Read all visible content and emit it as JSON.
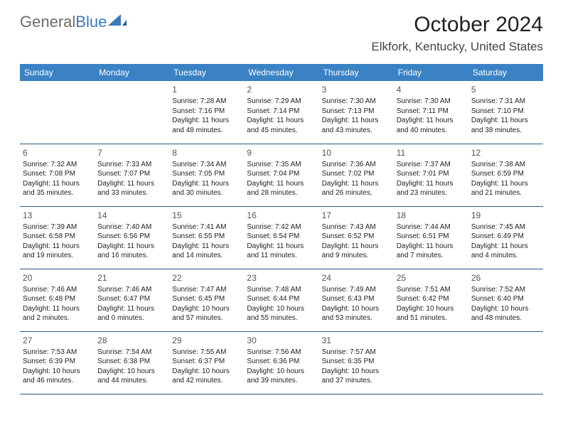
{
  "logo": {
    "text1": "General",
    "text2": "Blue"
  },
  "title": "October 2024",
  "location": "Elkfork, Kentucky, United States",
  "header_bg": "#3a82c4",
  "header_fg": "#ffffff",
  "rule_color": "#2a5a8a",
  "daynames": [
    "Sunday",
    "Monday",
    "Tuesday",
    "Wednesday",
    "Thursday",
    "Friday",
    "Saturday"
  ],
  "weeks": [
    [
      null,
      null,
      {
        "n": "1",
        "sr": "Sunrise: 7:28 AM",
        "ss": "Sunset: 7:16 PM",
        "d1": "Daylight: 11 hours",
        "d2": "and 48 minutes."
      },
      {
        "n": "2",
        "sr": "Sunrise: 7:29 AM",
        "ss": "Sunset: 7:14 PM",
        "d1": "Daylight: 11 hours",
        "d2": "and 45 minutes."
      },
      {
        "n": "3",
        "sr": "Sunrise: 7:30 AM",
        "ss": "Sunset: 7:13 PM",
        "d1": "Daylight: 11 hours",
        "d2": "and 43 minutes."
      },
      {
        "n": "4",
        "sr": "Sunrise: 7:30 AM",
        "ss": "Sunset: 7:11 PM",
        "d1": "Daylight: 11 hours",
        "d2": "and 40 minutes."
      },
      {
        "n": "5",
        "sr": "Sunrise: 7:31 AM",
        "ss": "Sunset: 7:10 PM",
        "d1": "Daylight: 11 hours",
        "d2": "and 38 minutes."
      }
    ],
    [
      {
        "n": "6",
        "sr": "Sunrise: 7:32 AM",
        "ss": "Sunset: 7:08 PM",
        "d1": "Daylight: 11 hours",
        "d2": "and 35 minutes."
      },
      {
        "n": "7",
        "sr": "Sunrise: 7:33 AM",
        "ss": "Sunset: 7:07 PM",
        "d1": "Daylight: 11 hours",
        "d2": "and 33 minutes."
      },
      {
        "n": "8",
        "sr": "Sunrise: 7:34 AM",
        "ss": "Sunset: 7:05 PM",
        "d1": "Daylight: 11 hours",
        "d2": "and 30 minutes."
      },
      {
        "n": "9",
        "sr": "Sunrise: 7:35 AM",
        "ss": "Sunset: 7:04 PM",
        "d1": "Daylight: 11 hours",
        "d2": "and 28 minutes."
      },
      {
        "n": "10",
        "sr": "Sunrise: 7:36 AM",
        "ss": "Sunset: 7:02 PM",
        "d1": "Daylight: 11 hours",
        "d2": "and 26 minutes."
      },
      {
        "n": "11",
        "sr": "Sunrise: 7:37 AM",
        "ss": "Sunset: 7:01 PM",
        "d1": "Daylight: 11 hours",
        "d2": "and 23 minutes."
      },
      {
        "n": "12",
        "sr": "Sunrise: 7:38 AM",
        "ss": "Sunset: 6:59 PM",
        "d1": "Daylight: 11 hours",
        "d2": "and 21 minutes."
      }
    ],
    [
      {
        "n": "13",
        "sr": "Sunrise: 7:39 AM",
        "ss": "Sunset: 6:58 PM",
        "d1": "Daylight: 11 hours",
        "d2": "and 19 minutes."
      },
      {
        "n": "14",
        "sr": "Sunrise: 7:40 AM",
        "ss": "Sunset: 6:56 PM",
        "d1": "Daylight: 11 hours",
        "d2": "and 16 minutes."
      },
      {
        "n": "15",
        "sr": "Sunrise: 7:41 AM",
        "ss": "Sunset: 6:55 PM",
        "d1": "Daylight: 11 hours",
        "d2": "and 14 minutes."
      },
      {
        "n": "16",
        "sr": "Sunrise: 7:42 AM",
        "ss": "Sunset: 6:54 PM",
        "d1": "Daylight: 11 hours",
        "d2": "and 11 minutes."
      },
      {
        "n": "17",
        "sr": "Sunrise: 7:43 AM",
        "ss": "Sunset: 6:52 PM",
        "d1": "Daylight: 11 hours",
        "d2": "and 9 minutes."
      },
      {
        "n": "18",
        "sr": "Sunrise: 7:44 AM",
        "ss": "Sunset: 6:51 PM",
        "d1": "Daylight: 11 hours",
        "d2": "and 7 minutes."
      },
      {
        "n": "19",
        "sr": "Sunrise: 7:45 AM",
        "ss": "Sunset: 6:49 PM",
        "d1": "Daylight: 11 hours",
        "d2": "and 4 minutes."
      }
    ],
    [
      {
        "n": "20",
        "sr": "Sunrise: 7:46 AM",
        "ss": "Sunset: 6:48 PM",
        "d1": "Daylight: 11 hours",
        "d2": "and 2 minutes."
      },
      {
        "n": "21",
        "sr": "Sunrise: 7:46 AM",
        "ss": "Sunset: 6:47 PM",
        "d1": "Daylight: 11 hours",
        "d2": "and 0 minutes."
      },
      {
        "n": "22",
        "sr": "Sunrise: 7:47 AM",
        "ss": "Sunset: 6:45 PM",
        "d1": "Daylight: 10 hours",
        "d2": "and 57 minutes."
      },
      {
        "n": "23",
        "sr": "Sunrise: 7:48 AM",
        "ss": "Sunset: 6:44 PM",
        "d1": "Daylight: 10 hours",
        "d2": "and 55 minutes."
      },
      {
        "n": "24",
        "sr": "Sunrise: 7:49 AM",
        "ss": "Sunset: 6:43 PM",
        "d1": "Daylight: 10 hours",
        "d2": "and 53 minutes."
      },
      {
        "n": "25",
        "sr": "Sunrise: 7:51 AM",
        "ss": "Sunset: 6:42 PM",
        "d1": "Daylight: 10 hours",
        "d2": "and 51 minutes."
      },
      {
        "n": "26",
        "sr": "Sunrise: 7:52 AM",
        "ss": "Sunset: 6:40 PM",
        "d1": "Daylight: 10 hours",
        "d2": "and 48 minutes."
      }
    ],
    [
      {
        "n": "27",
        "sr": "Sunrise: 7:53 AM",
        "ss": "Sunset: 6:39 PM",
        "d1": "Daylight: 10 hours",
        "d2": "and 46 minutes."
      },
      {
        "n": "28",
        "sr": "Sunrise: 7:54 AM",
        "ss": "Sunset: 6:38 PM",
        "d1": "Daylight: 10 hours",
        "d2": "and 44 minutes."
      },
      {
        "n": "29",
        "sr": "Sunrise: 7:55 AM",
        "ss": "Sunset: 6:37 PM",
        "d1": "Daylight: 10 hours",
        "d2": "and 42 minutes."
      },
      {
        "n": "30",
        "sr": "Sunrise: 7:56 AM",
        "ss": "Sunset: 6:36 PM",
        "d1": "Daylight: 10 hours",
        "d2": "and 39 minutes."
      },
      {
        "n": "31",
        "sr": "Sunrise: 7:57 AM",
        "ss": "Sunset: 6:35 PM",
        "d1": "Daylight: 10 hours",
        "d2": "and 37 minutes."
      },
      null,
      null
    ]
  ]
}
